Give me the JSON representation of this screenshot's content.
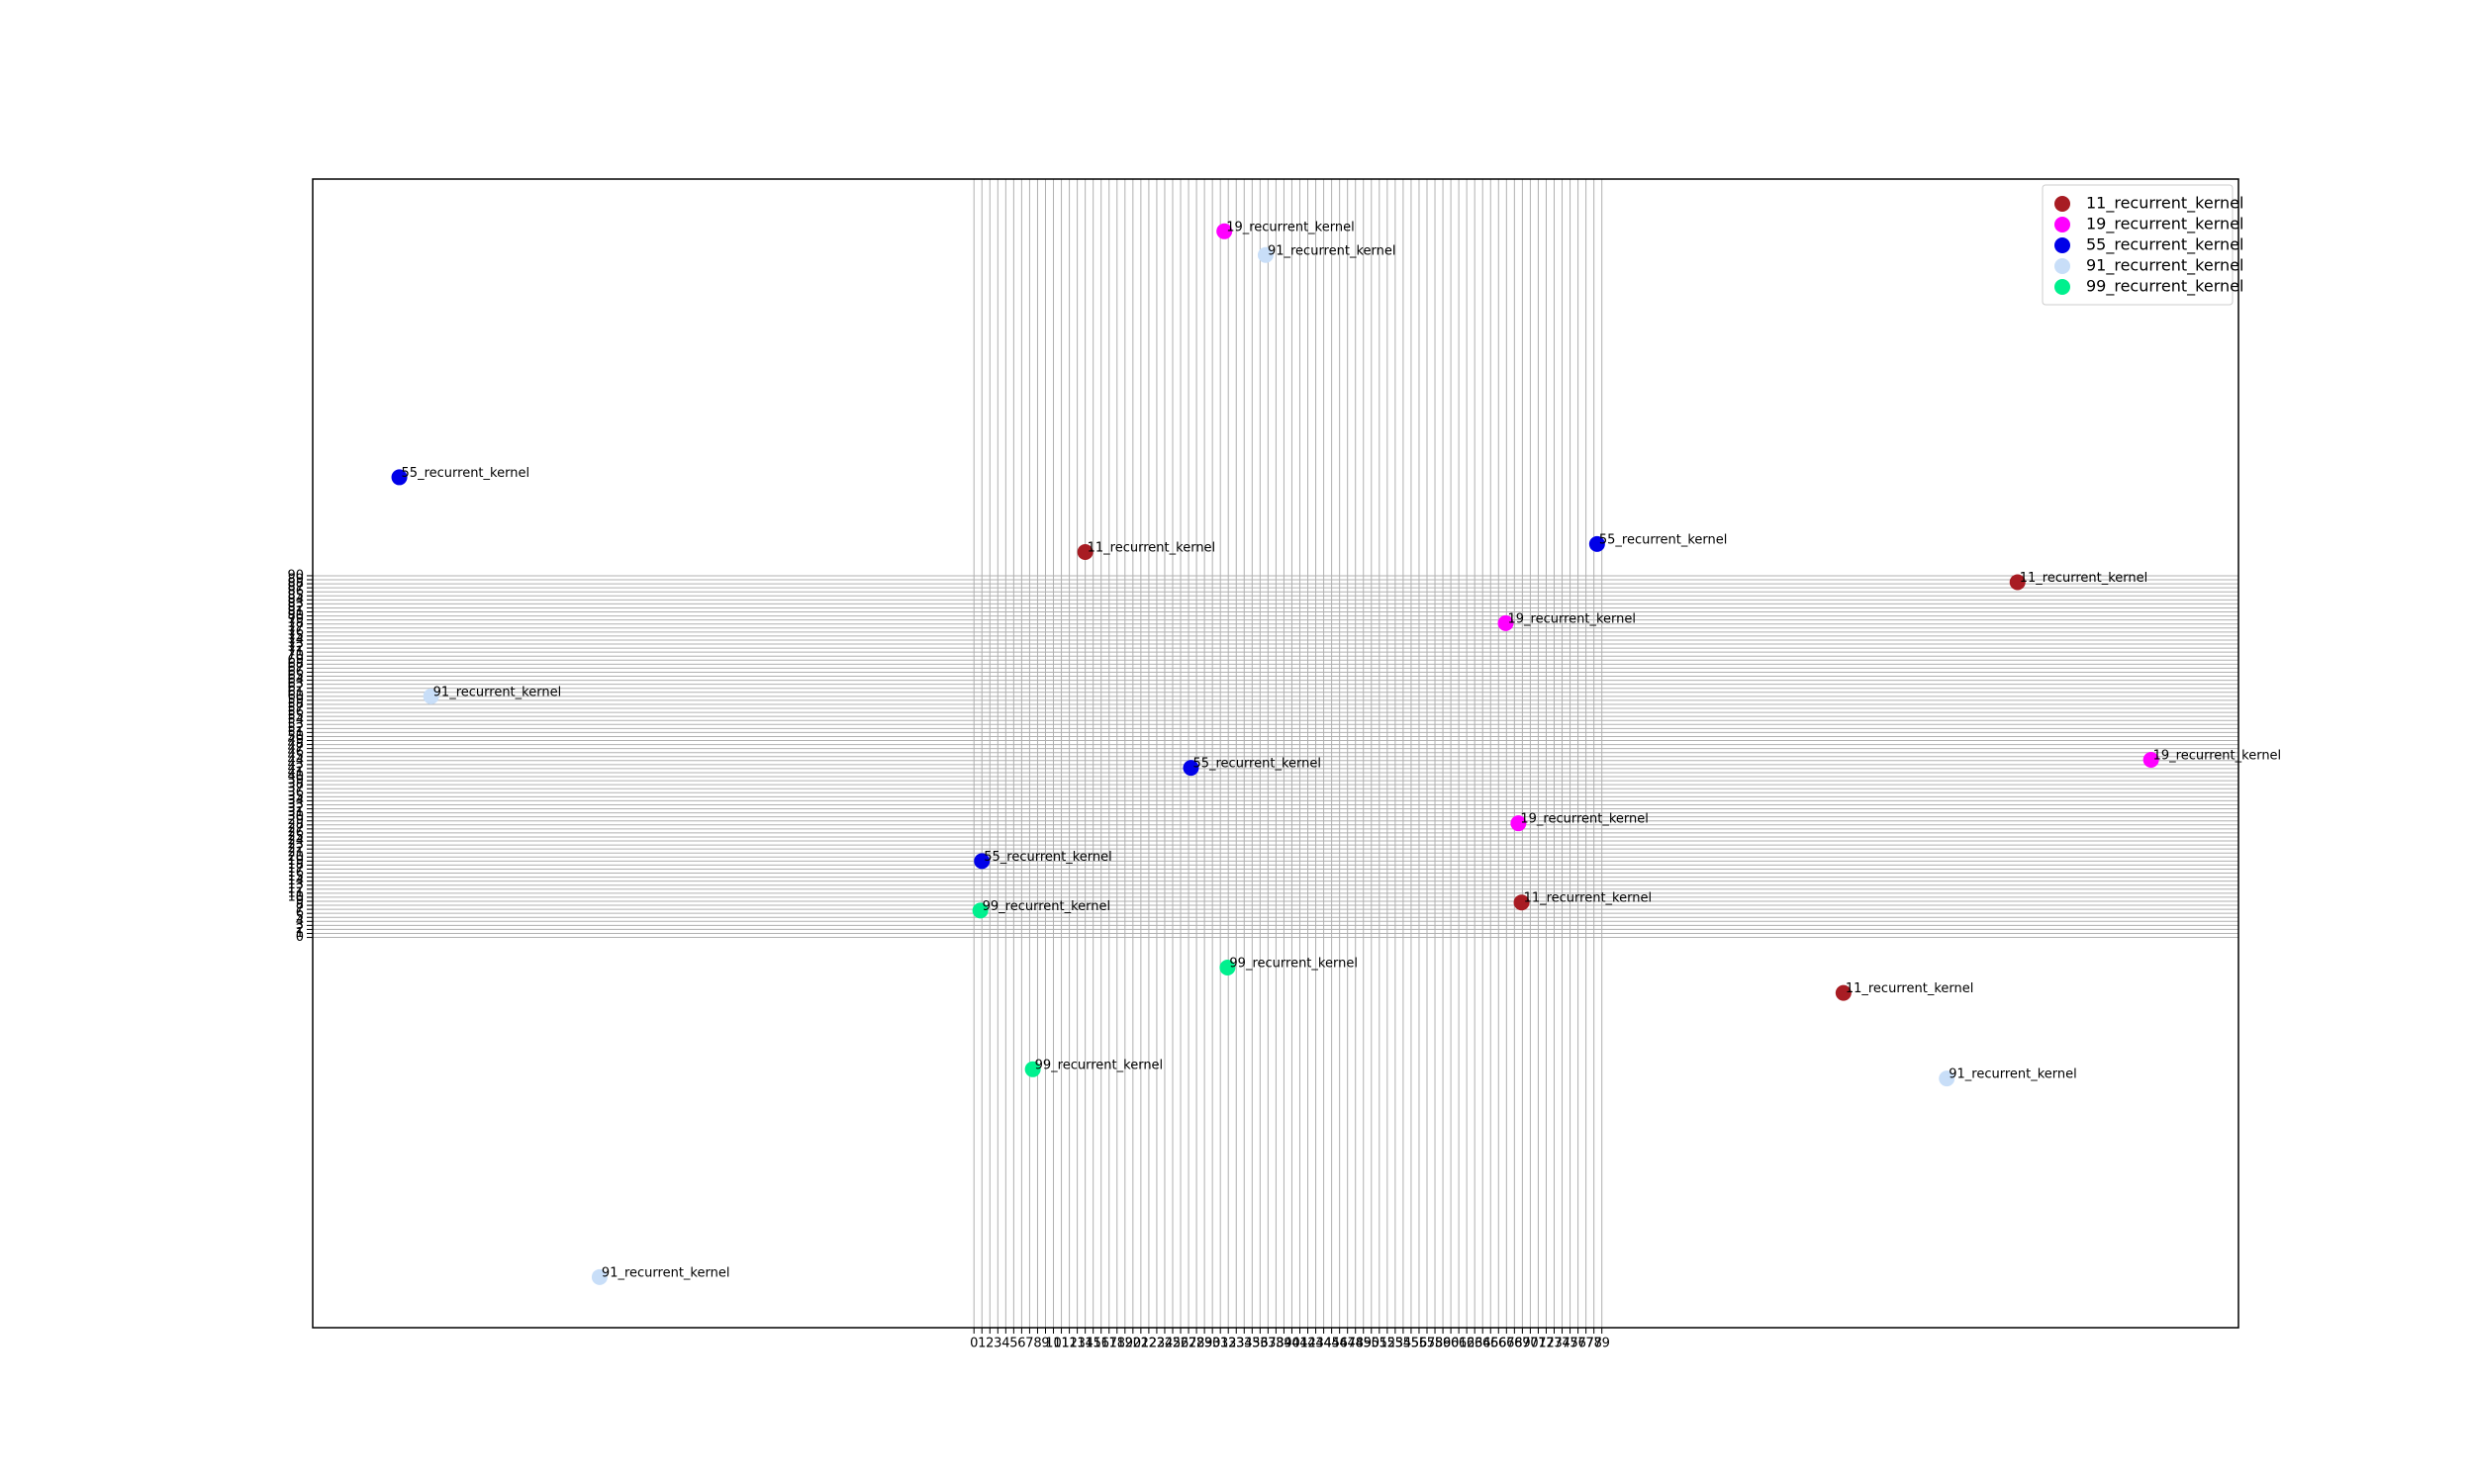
{
  "chart_data": {
    "type": "scatter",
    "xlim": [
      -83.2,
      159.1
    ],
    "ylim": [
      -97.1,
      188.7
    ],
    "xticks": [
      0,
      1,
      2,
      3,
      4,
      5,
      6,
      7,
      8,
      9,
      10,
      11,
      12,
      13,
      14,
      15,
      16,
      17,
      18,
      19,
      20,
      21,
      22,
      23,
      24,
      25,
      26,
      27,
      28,
      29,
      30,
      31,
      32,
      33,
      34,
      35,
      36,
      37,
      38,
      39,
      40,
      41,
      42,
      43,
      44,
      45,
      46,
      47,
      48,
      49,
      50,
      51,
      52,
      53,
      54,
      55,
      56,
      57,
      58,
      59,
      60,
      61,
      62,
      63,
      64,
      65,
      66,
      67,
      68,
      69,
      70,
      71,
      72,
      73,
      74,
      75,
      76,
      77,
      78,
      79
    ],
    "yticks": [
      0,
      1,
      2,
      3,
      4,
      5,
      6,
      7,
      8,
      9,
      10,
      11,
      12,
      13,
      14,
      15,
      16,
      17,
      18,
      19,
      20,
      21,
      22,
      23,
      24,
      25,
      26,
      27,
      28,
      29,
      30,
      31,
      32,
      33,
      34,
      35,
      36,
      37,
      38,
      39,
      40,
      41,
      42,
      43,
      44,
      45,
      46,
      47,
      48,
      49,
      50,
      51,
      52,
      53,
      54,
      55,
      56,
      57,
      58,
      59,
      60,
      61,
      62,
      63,
      64,
      65,
      66,
      67,
      68,
      69,
      70,
      71,
      72,
      73,
      74,
      75,
      76,
      77,
      78,
      79,
      80,
      81,
      82,
      83,
      84,
      85,
      86,
      87,
      88,
      89,
      90
    ],
    "grid": true,
    "legend": "upper right",
    "series": [
      {
        "name": "11_recurrent_kernel",
        "color": "#a81c23",
        "x": [
          14.0,
          131.3,
          68.9,
          109.4
        ],
        "values": [
          95.9,
          88.4,
          8.7,
          -13.8
        ]
      },
      {
        "name": "19_recurrent_kernel",
        "color": "#ff00ff",
        "x": [
          31.5,
          66.9,
          148.1,
          68.5
        ],
        "values": [
          175.7,
          78.2,
          44.2,
          28.4
        ]
      },
      {
        "name": "55_recurrent_kernel",
        "color": "#0000e8",
        "x": [
          -72.3,
          78.4,
          27.3,
          1.0
        ],
        "values": [
          114.5,
          97.9,
          42.2,
          19.0
        ]
      },
      {
        "name": "91_recurrent_kernel",
        "color": "#c8def8",
        "x": [
          36.7,
          -68.3,
          122.4,
          -47.1
        ],
        "values": [
          169.8,
          60.0,
          -35.1,
          -84.5
        ]
      },
      {
        "name": "99_recurrent_kernel",
        "color": "#00f08e",
        "x": [
          0.8,
          31.9,
          7.4
        ],
        "values": [
          6.7,
          -7.5,
          -32.8
        ]
      }
    ]
  }
}
